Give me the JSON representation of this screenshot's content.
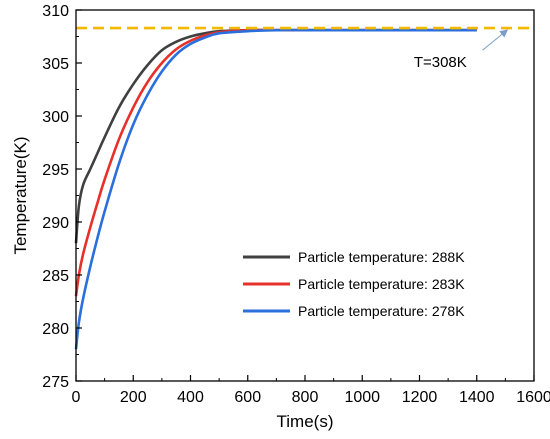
{
  "chart_data": {
    "type": "line",
    "xlabel": "Time(s)",
    "ylabel": "Temperature(K)",
    "xlim": [
      0,
      1600
    ],
    "ylim": [
      275,
      310
    ],
    "xticks": [
      0,
      200,
      400,
      600,
      800,
      1000,
      1200,
      1400,
      1600
    ],
    "yticks": [
      275,
      280,
      285,
      290,
      295,
      300,
      305,
      310
    ],
    "grid": false,
    "legend_position": "lower-right",
    "series": [
      {
        "name": "Particle temperature: 288K",
        "color": "#404040",
        "x": [
          0,
          10,
          25,
          50,
          75,
          100,
          150,
          200,
          250,
          300,
          350,
          400,
          450,
          500,
          600,
          700,
          800,
          1000,
          1200,
          1400
        ],
        "y": [
          288.0,
          291.5,
          293.5,
          295.0,
          296.5,
          298.0,
          300.8,
          303.0,
          304.8,
          306.2,
          307.0,
          307.5,
          307.8,
          308.0,
          308.1,
          308.1,
          308.1,
          308.1,
          308.1,
          308.1
        ]
      },
      {
        "name": "Particle temperature: 283K",
        "color": "#e8302a",
        "x": [
          0,
          10,
          25,
          50,
          75,
          100,
          150,
          200,
          250,
          300,
          350,
          400,
          450,
          500,
          600,
          700,
          800,
          1000,
          1200,
          1400
        ],
        "y": [
          283.0,
          285.0,
          287.0,
          289.5,
          291.8,
          294.0,
          297.8,
          300.8,
          303.2,
          305.0,
          306.3,
          307.1,
          307.6,
          307.9,
          308.1,
          308.1,
          308.1,
          308.1,
          308.1,
          308.1
        ]
      },
      {
        "name": "Particle temperature: 278K",
        "color": "#2b6fdc",
        "x": [
          0,
          10,
          25,
          50,
          75,
          100,
          150,
          200,
          250,
          300,
          350,
          400,
          450,
          500,
          600,
          700,
          800,
          1000,
          1200,
          1400
        ],
        "y": [
          278.0,
          280.5,
          282.8,
          285.8,
          288.5,
          291.0,
          295.5,
          299.2,
          302.0,
          304.2,
          305.8,
          306.8,
          307.4,
          307.8,
          308.0,
          308.1,
          308.1,
          308.1,
          308.1,
          308.1
        ]
      }
    ],
    "reference_line": {
      "y": 308.3,
      "color": "#f5b800",
      "style": "dashed"
    },
    "annotation": {
      "text": "T=308K",
      "point": [
        1510,
        308.3
      ],
      "text_at": [
        1250,
        305.2
      ]
    }
  }
}
